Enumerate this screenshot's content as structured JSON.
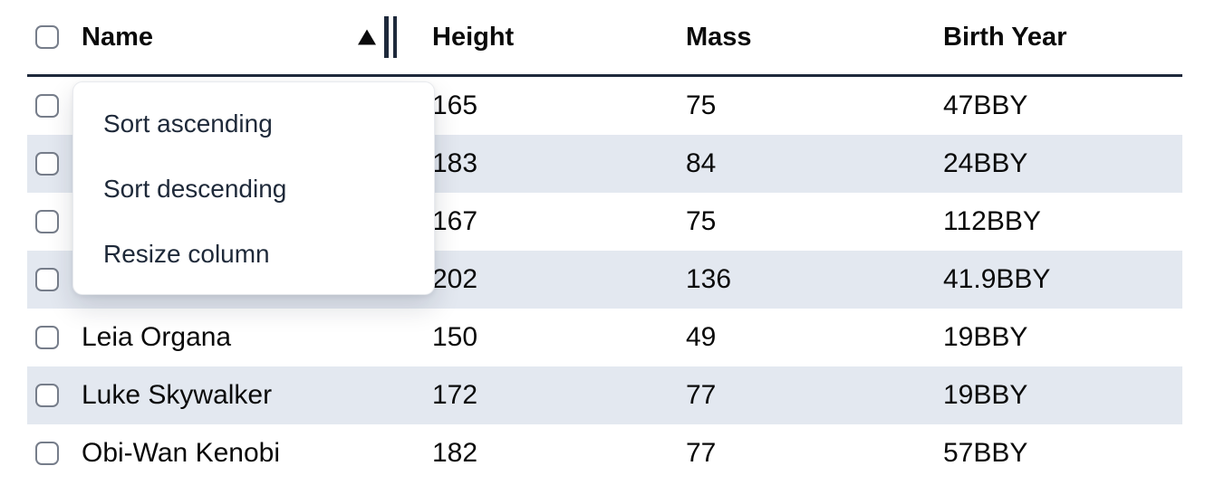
{
  "table": {
    "select_all_checked": false,
    "columns": [
      {
        "id": "name",
        "label": "Name",
        "sorted": "ascending"
      },
      {
        "id": "height",
        "label": "Height",
        "sorted": null
      },
      {
        "id": "mass",
        "label": "Mass",
        "sorted": null
      },
      {
        "id": "birth_year",
        "label": "Birth Year",
        "sorted": null
      }
    ],
    "sort_indicator_icon": "triangle-up",
    "rows": [
      {
        "name": "",
        "height": "165",
        "mass": "75",
        "birth_year": "47BBY",
        "checked": false
      },
      {
        "name": "",
        "height": "183",
        "mass": "84",
        "birth_year": "24BBY",
        "checked": false
      },
      {
        "name": "",
        "height": "167",
        "mass": "75",
        "birth_year": "112BBY",
        "checked": false
      },
      {
        "name": "",
        "height": "202",
        "mass": "136",
        "birth_year": "41.9BBY",
        "checked": false
      },
      {
        "name": "Leia Organa",
        "height": "150",
        "mass": "49",
        "birth_year": "19BBY",
        "checked": false
      },
      {
        "name": "Luke Skywalker",
        "height": "172",
        "mass": "77",
        "birth_year": "19BBY",
        "checked": false
      },
      {
        "name": "Obi-Wan Kenobi",
        "height": "182",
        "mass": "77",
        "birth_year": "57BBY",
        "checked": false
      }
    ]
  },
  "context_menu": {
    "items": [
      {
        "label": "Sort ascending"
      },
      {
        "label": "Sort descending"
      },
      {
        "label": "Resize column"
      }
    ]
  },
  "colors": {
    "header_border": "#1e293b",
    "row_stripe": "#e3e8f0",
    "cell_text": "#0a0a0a",
    "menu_text": "#1e2939",
    "checkbox_border": "#767d8a"
  }
}
